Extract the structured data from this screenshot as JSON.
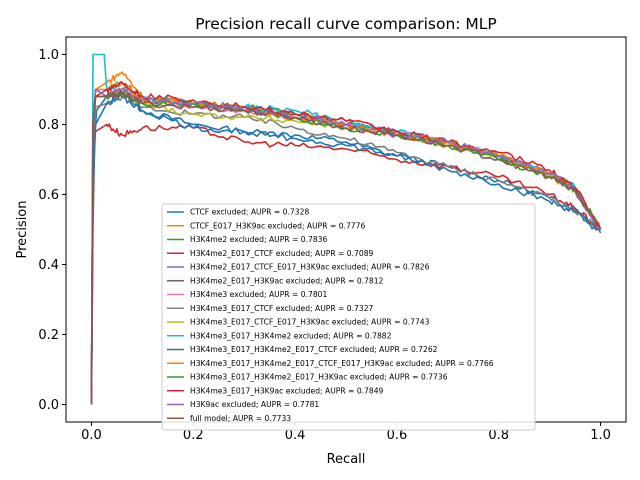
{
  "chart_data": {
    "type": "line",
    "title": "Precision recall curve comparison: MLP",
    "xlabel": "Recall",
    "ylabel": "Precision",
    "xlim": [
      -0.05,
      1.05
    ],
    "ylim": [
      -0.05,
      1.05
    ],
    "xticks": [
      "0.0",
      "0.2",
      "0.4",
      "0.6",
      "0.8",
      "1.0"
    ],
    "yticks": [
      "0.0",
      "0.2",
      "0.4",
      "0.6",
      "0.8",
      "1.0"
    ],
    "grid": false,
    "legend_position": "center-bottom",
    "series": [
      {
        "name": "CTCF excluded; AUPR = 0.7328",
        "color": "#1f77b4",
        "points": [
          [
            0,
            0
          ],
          [
            0.003,
            0.5
          ],
          [
            0.006,
            0.75
          ],
          [
            0.01,
            0.84
          ],
          [
            0.03,
            0.88
          ],
          [
            0.06,
            0.89
          ],
          [
            0.1,
            0.84
          ],
          [
            0.2,
            0.8
          ],
          [
            0.3,
            0.78
          ],
          [
            0.4,
            0.77
          ],
          [
            0.5,
            0.75
          ],
          [
            0.6,
            0.71
          ],
          [
            0.7,
            0.68
          ],
          [
            0.8,
            0.64
          ],
          [
            0.9,
            0.59
          ],
          [
            0.95,
            0.56
          ],
          [
            1.0,
            0.5
          ]
        ]
      },
      {
        "name": "CTCF_E017_H3K9ac excluded; AUPR = 0.7776",
        "color": "#ff7f0e",
        "points": [
          [
            0,
            0
          ],
          [
            0.003,
            0.7
          ],
          [
            0.008,
            0.9
          ],
          [
            0.03,
            0.92
          ],
          [
            0.06,
            0.95
          ],
          [
            0.1,
            0.88
          ],
          [
            0.2,
            0.86
          ],
          [
            0.3,
            0.85
          ],
          [
            0.4,
            0.82
          ],
          [
            0.5,
            0.8
          ],
          [
            0.6,
            0.77
          ],
          [
            0.7,
            0.74
          ],
          [
            0.8,
            0.71
          ],
          [
            0.9,
            0.66
          ],
          [
            0.95,
            0.62
          ],
          [
            1.0,
            0.5
          ]
        ]
      },
      {
        "name": "H3K4me2 excluded; AUPR = 0.7836",
        "color": "#2ca02c",
        "points": [
          [
            0,
            0
          ],
          [
            0.003,
            0.8
          ],
          [
            0.008,
            0.9
          ],
          [
            0.03,
            0.88
          ],
          [
            0.06,
            0.9
          ],
          [
            0.1,
            0.87
          ],
          [
            0.2,
            0.86
          ],
          [
            0.3,
            0.85
          ],
          [
            0.4,
            0.83
          ],
          [
            0.5,
            0.8
          ],
          [
            0.6,
            0.78
          ],
          [
            0.7,
            0.75
          ],
          [
            0.8,
            0.71
          ],
          [
            0.9,
            0.66
          ],
          [
            0.95,
            0.62
          ],
          [
            1.0,
            0.5
          ]
        ]
      },
      {
        "name": "H3K4me2_E017_CTCF excluded; AUPR = 0.7089",
        "color": "#d62728",
        "points": [
          [
            0,
            0
          ],
          [
            0.003,
            0.7
          ],
          [
            0.008,
            0.78
          ],
          [
            0.03,
            0.8
          ],
          [
            0.06,
            0.77
          ],
          [
            0.1,
            0.79
          ],
          [
            0.2,
            0.79
          ],
          [
            0.3,
            0.75
          ],
          [
            0.4,
            0.74
          ],
          [
            0.5,
            0.73
          ],
          [
            0.6,
            0.7
          ],
          [
            0.7,
            0.68
          ],
          [
            0.8,
            0.65
          ],
          [
            0.9,
            0.6
          ],
          [
            0.95,
            0.56
          ],
          [
            1.0,
            0.5
          ]
        ]
      },
      {
        "name": "H3K4me2_E017_CTCF_E017_H3K9ac excluded; AUPR = 0.7826",
        "color": "#9467bd",
        "points": [
          [
            0,
            0
          ],
          [
            0.003,
            0.8
          ],
          [
            0.008,
            0.88
          ],
          [
            0.03,
            0.88
          ],
          [
            0.06,
            0.9
          ],
          [
            0.1,
            0.87
          ],
          [
            0.2,
            0.86
          ],
          [
            0.3,
            0.85
          ],
          [
            0.4,
            0.83
          ],
          [
            0.5,
            0.8
          ],
          [
            0.6,
            0.78
          ],
          [
            0.7,
            0.75
          ],
          [
            0.8,
            0.71
          ],
          [
            0.9,
            0.66
          ],
          [
            0.95,
            0.62
          ],
          [
            1.0,
            0.5
          ]
        ]
      },
      {
        "name": "H3K4me2_E017_H3K9ac excluded; AUPR = 0.7812",
        "color": "#8c564b",
        "points": [
          [
            0,
            0
          ],
          [
            0.003,
            0.8
          ],
          [
            0.008,
            0.9
          ],
          [
            0.03,
            0.88
          ],
          [
            0.06,
            0.89
          ],
          [
            0.1,
            0.87
          ],
          [
            0.2,
            0.86
          ],
          [
            0.3,
            0.84
          ],
          [
            0.4,
            0.83
          ],
          [
            0.5,
            0.8
          ],
          [
            0.6,
            0.78
          ],
          [
            0.7,
            0.75
          ],
          [
            0.8,
            0.71
          ],
          [
            0.9,
            0.66
          ],
          [
            0.95,
            0.61
          ],
          [
            1.0,
            0.5
          ]
        ]
      },
      {
        "name": "H3K4me3 excluded; AUPR = 0.7801",
        "color": "#e377c2",
        "points": [
          [
            0,
            0
          ],
          [
            0.003,
            0.75
          ],
          [
            0.008,
            0.88
          ],
          [
            0.03,
            0.88
          ],
          [
            0.06,
            0.9
          ],
          [
            0.1,
            0.86
          ],
          [
            0.2,
            0.85
          ],
          [
            0.3,
            0.84
          ],
          [
            0.4,
            0.82
          ],
          [
            0.5,
            0.8
          ],
          [
            0.6,
            0.78
          ],
          [
            0.7,
            0.75
          ],
          [
            0.8,
            0.71
          ],
          [
            0.9,
            0.66
          ],
          [
            0.95,
            0.61
          ],
          [
            1.0,
            0.5
          ]
        ]
      },
      {
        "name": "H3K4me3_E017_CTCF excluded; AUPR = 0.7327",
        "color": "#7f7f7f",
        "points": [
          [
            0,
            0
          ],
          [
            0.003,
            0.7
          ],
          [
            0.008,
            0.85
          ],
          [
            0.03,
            0.86
          ],
          [
            0.06,
            0.88
          ],
          [
            0.1,
            0.85
          ],
          [
            0.2,
            0.83
          ],
          [
            0.3,
            0.82
          ],
          [
            0.4,
            0.79
          ],
          [
            0.5,
            0.76
          ],
          [
            0.6,
            0.72
          ],
          [
            0.7,
            0.68
          ],
          [
            0.8,
            0.64
          ],
          [
            0.9,
            0.59
          ],
          [
            0.95,
            0.55
          ],
          [
            1.0,
            0.5
          ]
        ]
      },
      {
        "name": "H3K4me3_E017_CTCF_E017_H3K9ac excluded; AUPR = 0.7743",
        "color": "#bcbd22",
        "points": [
          [
            0,
            0
          ],
          [
            0.003,
            0.8
          ],
          [
            0.008,
            0.88
          ],
          [
            0.03,
            0.88
          ],
          [
            0.06,
            0.9
          ],
          [
            0.1,
            0.86
          ],
          [
            0.2,
            0.83
          ],
          [
            0.3,
            0.82
          ],
          [
            0.4,
            0.81
          ],
          [
            0.5,
            0.79
          ],
          [
            0.6,
            0.77
          ],
          [
            0.7,
            0.74
          ],
          [
            0.8,
            0.71
          ],
          [
            0.9,
            0.65
          ],
          [
            0.95,
            0.61
          ],
          [
            1.0,
            0.5
          ]
        ]
      },
      {
        "name": "H3K4me3_E017_H3K4me2 excluded; AUPR = 0.7882",
        "color": "#17becf",
        "points": [
          [
            0,
            0
          ],
          [
            0.003,
            1.0
          ],
          [
            0.01,
            1.0
          ],
          [
            0.025,
            1.0
          ],
          [
            0.03,
            0.9
          ],
          [
            0.06,
            0.92
          ],
          [
            0.1,
            0.88
          ],
          [
            0.2,
            0.86
          ],
          [
            0.3,
            0.85
          ],
          [
            0.4,
            0.84
          ],
          [
            0.5,
            0.81
          ],
          [
            0.6,
            0.78
          ],
          [
            0.7,
            0.75
          ],
          [
            0.8,
            0.71
          ],
          [
            0.9,
            0.66
          ],
          [
            0.95,
            0.62
          ],
          [
            1.0,
            0.5
          ]
        ]
      },
      {
        "name": "H3K4me3_E017_H3K4me2_E017_CTCF excluded; AUPR = 0.7262",
        "color": "#1f77b4",
        "points": [
          [
            0,
            0
          ],
          [
            0.003,
            0.6
          ],
          [
            0.008,
            0.8
          ],
          [
            0.03,
            0.86
          ],
          [
            0.06,
            0.88
          ],
          [
            0.1,
            0.84
          ],
          [
            0.2,
            0.79
          ],
          [
            0.3,
            0.78
          ],
          [
            0.4,
            0.76
          ],
          [
            0.5,
            0.74
          ],
          [
            0.6,
            0.71
          ],
          [
            0.7,
            0.67
          ],
          [
            0.8,
            0.63
          ],
          [
            0.9,
            0.58
          ],
          [
            0.95,
            0.55
          ],
          [
            1.0,
            0.49
          ]
        ]
      },
      {
        "name": "H3K4me3_E017_H3K4me2_E017_CTCF_E017_H3K9ac excluded; AUPR = 0.7766",
        "color": "#ff7f0e",
        "points": [
          [
            0,
            0
          ],
          [
            0.003,
            0.8
          ],
          [
            0.008,
            0.9
          ],
          [
            0.03,
            0.9
          ],
          [
            0.06,
            0.92
          ],
          [
            0.1,
            0.87
          ],
          [
            0.2,
            0.86
          ],
          [
            0.3,
            0.84
          ],
          [
            0.4,
            0.82
          ],
          [
            0.5,
            0.8
          ],
          [
            0.6,
            0.77
          ],
          [
            0.7,
            0.75
          ],
          [
            0.8,
            0.71
          ],
          [
            0.9,
            0.66
          ],
          [
            0.95,
            0.61
          ],
          [
            1.0,
            0.5
          ]
        ]
      },
      {
        "name": "H3K4me3_E017_H3K4me2_E017_H3K9ac excluded; AUPR = 0.7736",
        "color": "#2ca02c",
        "points": [
          [
            0,
            0
          ],
          [
            0.003,
            0.8
          ],
          [
            0.008,
            0.88
          ],
          [
            0.03,
            0.88
          ],
          [
            0.06,
            0.89
          ],
          [
            0.1,
            0.86
          ],
          [
            0.2,
            0.86
          ],
          [
            0.3,
            0.84
          ],
          [
            0.4,
            0.82
          ],
          [
            0.5,
            0.79
          ],
          [
            0.6,
            0.77
          ],
          [
            0.7,
            0.74
          ],
          [
            0.8,
            0.7
          ],
          [
            0.9,
            0.65
          ],
          [
            0.95,
            0.61
          ],
          [
            1.0,
            0.5
          ]
        ]
      },
      {
        "name": "H3K4me3_E017_H3K9ac excluded; AUPR = 0.7849",
        "color": "#d62728",
        "points": [
          [
            0,
            0
          ],
          [
            0.003,
            0.8
          ],
          [
            0.008,
            0.88
          ],
          [
            0.03,
            0.9
          ],
          [
            0.06,
            0.92
          ],
          [
            0.1,
            0.88
          ],
          [
            0.2,
            0.87
          ],
          [
            0.3,
            0.85
          ],
          [
            0.4,
            0.83
          ],
          [
            0.5,
            0.81
          ],
          [
            0.6,
            0.78
          ],
          [
            0.7,
            0.75
          ],
          [
            0.8,
            0.72
          ],
          [
            0.9,
            0.67
          ],
          [
            0.95,
            0.62
          ],
          [
            1.0,
            0.5
          ]
        ]
      },
      {
        "name": "H3K9ac excluded; AUPR = 0.7781",
        "color": "#9467bd",
        "points": [
          [
            0,
            0
          ],
          [
            0.003,
            0.8
          ],
          [
            0.008,
            0.9
          ],
          [
            0.03,
            0.88
          ],
          [
            0.06,
            0.9
          ],
          [
            0.1,
            0.87
          ],
          [
            0.2,
            0.86
          ],
          [
            0.3,
            0.84
          ],
          [
            0.4,
            0.82
          ],
          [
            0.5,
            0.8
          ],
          [
            0.6,
            0.77
          ],
          [
            0.7,
            0.75
          ],
          [
            0.8,
            0.71
          ],
          [
            0.9,
            0.66
          ],
          [
            0.95,
            0.61
          ],
          [
            1.0,
            0.5
          ]
        ]
      },
      {
        "name": "full model; AUPR = 0.7733",
        "color": "#8c564b",
        "points": [
          [
            0,
            0
          ],
          [
            0.003,
            0.8
          ],
          [
            0.008,
            0.88
          ],
          [
            0.03,
            0.88
          ],
          [
            0.06,
            0.89
          ],
          [
            0.1,
            0.86
          ],
          [
            0.2,
            0.85
          ],
          [
            0.3,
            0.84
          ],
          [
            0.4,
            0.82
          ],
          [
            0.5,
            0.79
          ],
          [
            0.6,
            0.77
          ],
          [
            0.7,
            0.74
          ],
          [
            0.8,
            0.7
          ],
          [
            0.9,
            0.65
          ],
          [
            0.95,
            0.61
          ],
          [
            1.0,
            0.5
          ]
        ]
      }
    ]
  }
}
